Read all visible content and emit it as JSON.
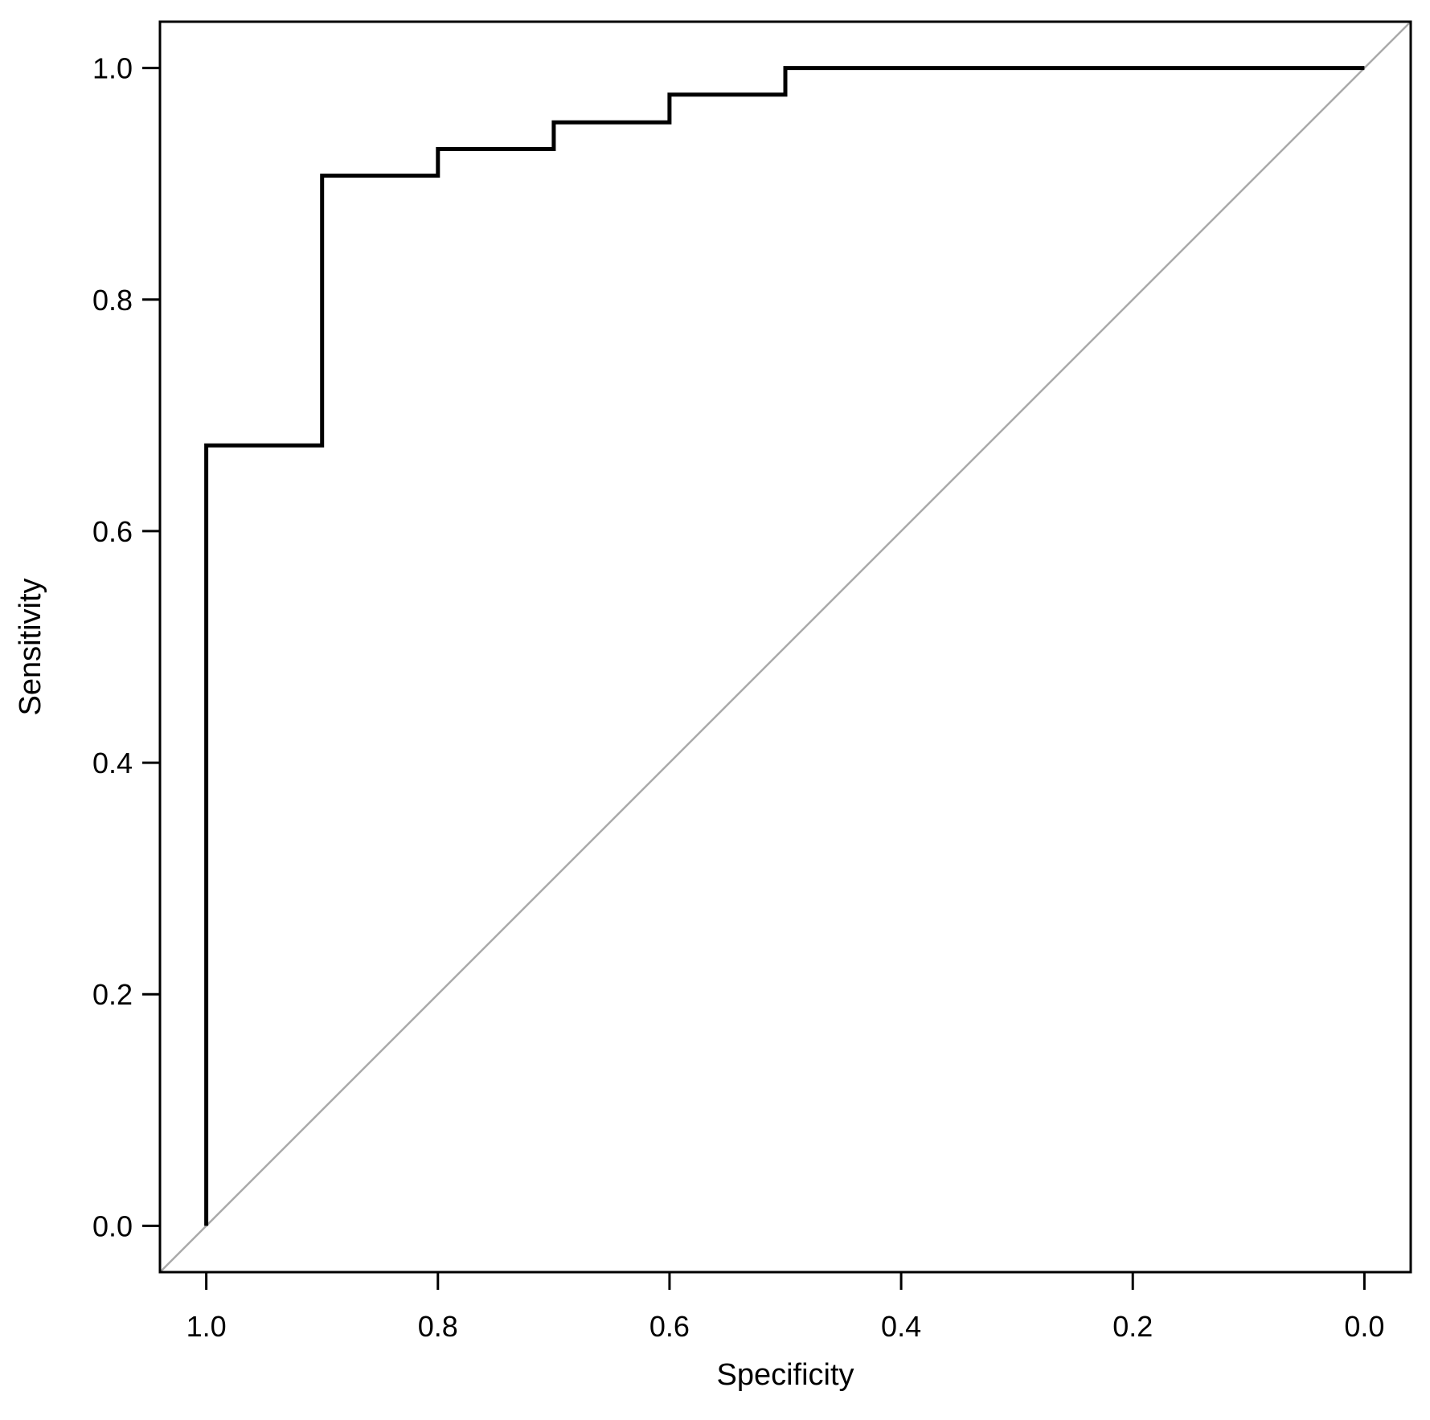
{
  "chart_data": {
    "type": "line",
    "title": "",
    "xlabel": "Specificity",
    "ylabel": "Sensitivity",
    "x_reversed": true,
    "xlim": [
      1.04,
      -0.04
    ],
    "ylim": [
      -0.04,
      1.04
    ],
    "x_ticks": [
      "1.0",
      "0.8",
      "0.6",
      "0.4",
      "0.2",
      "0.0"
    ],
    "x_tick_values": [
      1.0,
      0.8,
      0.6,
      0.4,
      0.2,
      0.0
    ],
    "y_ticks": [
      "0.0",
      "0.2",
      "0.4",
      "0.6",
      "0.8",
      "1.0"
    ],
    "y_tick_values": [
      0.0,
      0.2,
      0.4,
      0.6,
      0.8,
      1.0
    ],
    "grid": false,
    "series": [
      {
        "color": "#000000",
        "step": true,
        "x": [
          1.0,
          1.0,
          0.9,
          0.9,
          0.8,
          0.8,
          0.7,
          0.7,
          0.6,
          0.6,
          0.5,
          0.5,
          0.0
        ],
        "y": [
          0.0,
          0.674,
          0.674,
          0.907,
          0.907,
          0.93,
          0.93,
          0.953,
          0.953,
          0.977,
          0.977,
          1.0,
          1.0
        ]
      }
    ],
    "reference_line": {
      "color": "#aaaaaa",
      "from": [
        1.04,
        -0.04
      ],
      "to": [
        -0.04,
        1.04
      ]
    }
  }
}
